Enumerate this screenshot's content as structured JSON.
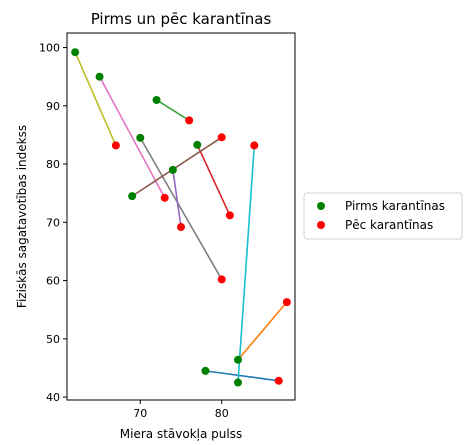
{
  "chart_data": {
    "type": "scatter",
    "title": "Pirms un pēc karantīnas",
    "xlabel": "Miera stāvokļa pulss",
    "ylabel": "Fiziskās sagatavotības indekss",
    "xlim": [
      61,
      89
    ],
    "ylim": [
      39.5,
      102.5
    ],
    "xticks": [
      70,
      80
    ],
    "yticks": [
      40,
      50,
      60,
      70,
      80,
      90,
      100
    ],
    "grid": false,
    "legend_position": "right",
    "series": [
      {
        "name": "Pirms karantīnas",
        "color": "#008000",
        "points": [
          {
            "x": 62,
            "y": 99.2
          },
          {
            "x": 65,
            "y": 95.0
          },
          {
            "x": 72,
            "y": 91.0
          },
          {
            "x": 70,
            "y": 84.5
          },
          {
            "x": 77,
            "y": 83.3
          },
          {
            "x": 74,
            "y": 79.0
          },
          {
            "x": 69,
            "y": 74.5
          },
          {
            "x": 82,
            "y": 46.4
          },
          {
            "x": 78,
            "y": 44.5
          },
          {
            "x": 82,
            "y": 42.5
          }
        ]
      },
      {
        "name": "Pēc karantīnas",
        "color": "#ff0000",
        "points": [
          {
            "x": 67,
            "y": 83.2
          },
          {
            "x": 73,
            "y": 74.2
          },
          {
            "x": 76,
            "y": 87.5
          },
          {
            "x": 80,
            "y": 60.2
          },
          {
            "x": 81,
            "y": 71.2
          },
          {
            "x": 75,
            "y": 69.2
          },
          {
            "x": 80,
            "y": 84.6
          },
          {
            "x": 88,
            "y": 56.3
          },
          {
            "x": 87,
            "y": 42.8
          },
          {
            "x": 84,
            "y": 83.2
          }
        ]
      }
    ],
    "connections": [
      {
        "color": "#bcbd22",
        "from": {
          "x": 62,
          "y": 99.2
        },
        "to": {
          "x": 67,
          "y": 83.2
        }
      },
      {
        "color": "#e377c2",
        "from": {
          "x": 65,
          "y": 95.0
        },
        "to": {
          "x": 73,
          "y": 74.2
        }
      },
      {
        "color": "#2ca02c",
        "from": {
          "x": 72,
          "y": 91.0
        },
        "to": {
          "x": 76,
          "y": 87.5
        }
      },
      {
        "color": "#7f7f7f",
        "from": {
          "x": 70,
          "y": 84.5
        },
        "to": {
          "x": 80,
          "y": 60.2
        }
      },
      {
        "color": "#d62728",
        "from": {
          "x": 77,
          "y": 83.3
        },
        "to": {
          "x": 81,
          "y": 71.2
        }
      },
      {
        "color": "#9467bd",
        "from": {
          "x": 74,
          "y": 79.0
        },
        "to": {
          "x": 75,
          "y": 69.2
        }
      },
      {
        "color": "#8c564b",
        "from": {
          "x": 69,
          "y": 74.5
        },
        "to": {
          "x": 80,
          "y": 84.6
        }
      },
      {
        "color": "#ff7f0e",
        "from": {
          "x": 82,
          "y": 46.4
        },
        "to": {
          "x": 88,
          "y": 56.3
        }
      },
      {
        "color": "#1f77b4",
        "from": {
          "x": 78,
          "y": 44.5
        },
        "to": {
          "x": 87,
          "y": 42.8
        }
      },
      {
        "color": "#17becf",
        "from": {
          "x": 82,
          "y": 42.5
        },
        "to": {
          "x": 84,
          "y": 83.2
        }
      }
    ]
  }
}
